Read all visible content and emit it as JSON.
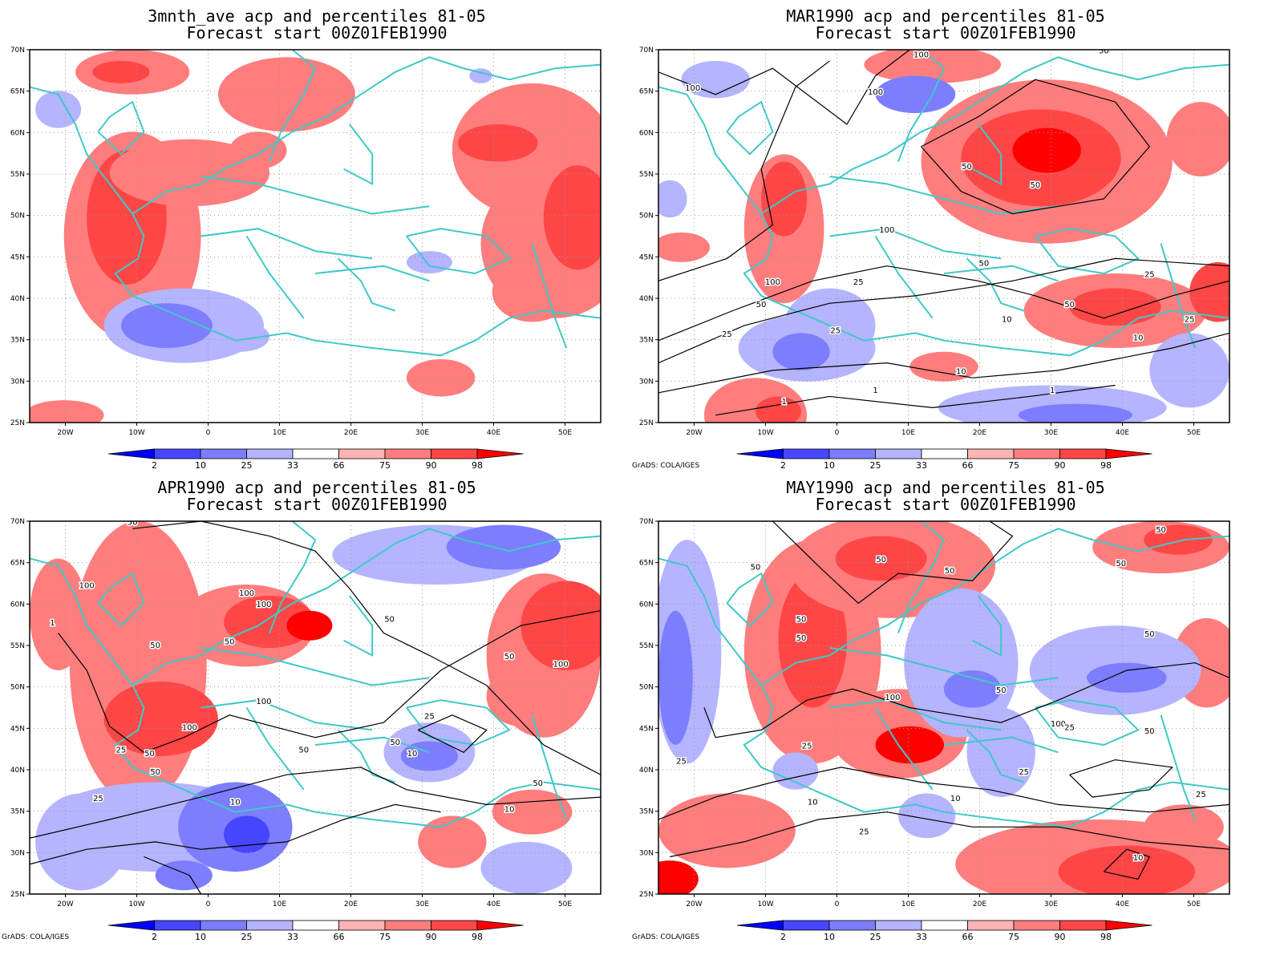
{
  "axes": {
    "lat_labels": [
      "70N",
      "65N",
      "60N",
      "55N",
      "50N",
      "45N",
      "40N",
      "35N",
      "30N",
      "25N"
    ],
    "lon_labels": [
      "20W",
      "10W",
      "0",
      "10E",
      "20E",
      "30E",
      "40E",
      "50E"
    ],
    "lon_range": [
      -25,
      55
    ],
    "lat_range": [
      25,
      70
    ]
  },
  "colorbar": {
    "labels": [
      "2",
      "10",
      "25",
      "33",
      "66",
      "75",
      "90",
      "98"
    ],
    "colors": [
      "#0000ff",
      "#4646ff",
      "#7d7dff",
      "#b4b4ff",
      "#ffffff",
      "#ffb4b4",
      "#ff7d7d",
      "#ff4646",
      "#ff0000"
    ]
  },
  "colors": {
    "coastline": "#40c8c8",
    "contour": "#000000",
    "frame": "#000000"
  },
  "panels": [
    {
      "title_line1": "3mnth_ave acp and percentiles 81-05",
      "title_line2": "Forecast start 00Z01FEB1990",
      "credit": ""
    },
    {
      "title_line1": "MAR1990 acp and percentiles 81-05",
      "title_line2": "Forecast start 00Z01FEB1990",
      "credit": "GrADS: COLA/IGES"
    },
    {
      "title_line1": "APR1990 acp and percentiles 81-05",
      "title_line2": "Forecast start 00Z01FEB1990",
      "credit": "GrADS: COLA/IGES"
    },
    {
      "title_line1": "MAY1990 acp and percentiles 81-05",
      "title_line2": "Forecast start 00Z01FEB1990",
      "credit": "GrADS: COLA/IGES"
    }
  ],
  "contour_labels": {
    "p1": [
      "100",
      "100",
      "100",
      "50",
      "50",
      "50",
      "100",
      "100",
      "50",
      "50",
      "50",
      "25",
      "25",
      "25",
      "25",
      "25",
      "10",
      "10",
      "10",
      "1",
      "1",
      "1"
    ],
    "p2": [
      "50",
      "100",
      "100",
      "50",
      "50",
      "100",
      "50",
      "50",
      "50",
      "50",
      "50",
      "100",
      "100",
      "25",
      "25",
      "50",
      "25",
      "10",
      "10",
      "10",
      "1",
      "50",
      "100"
    ],
    "p3": [
      "50",
      "50",
      "50",
      "50",
      "50",
      "50",
      "50",
      "100",
      "100",
      "50",
      "50",
      "25",
      "25",
      "50",
      "25",
      "25",
      "10",
      "10",
      "25",
      "10",
      "25"
    ]
  }
}
